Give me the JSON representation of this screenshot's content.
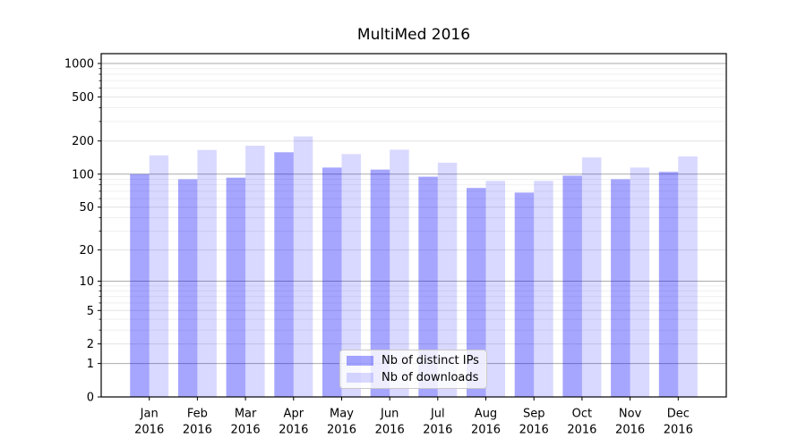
{
  "chart_data": {
    "type": "bar",
    "title": "MultiMed 2016",
    "categories": [
      "Jan 2016",
      "Feb 2016",
      "Mar 2016",
      "Apr 2016",
      "May 2016",
      "Jun 2016",
      "Jul 2016",
      "Aug 2016",
      "Sep 2016",
      "Oct 2016",
      "Nov 2016",
      "Dec 2016"
    ],
    "series": [
      {
        "name": "Nb of distinct IPs",
        "color": "#0000ff59",
        "values": [
          100,
          90,
          93,
          158,
          115,
          110,
          95,
          75,
          68,
          97,
          90,
          105
        ]
      },
      {
        "name": "Nb of downloads",
        "color": "#0000ff26",
        "values": [
          148,
          166,
          181,
          220,
          152,
          167,
          127,
          87,
          87,
          142,
          115,
          145
        ]
      }
    ],
    "xlabel": "",
    "ylabel": "",
    "y_scale": "log1p",
    "y_ticks": [
      0,
      1,
      2,
      5,
      10,
      20,
      50,
      100,
      200,
      500,
      1000
    ],
    "ylim": [
      0,
      1290
    ],
    "grid": true,
    "legend_position": "lower center"
  },
  "colors": {
    "axis_frame": "#000000",
    "grid_major": "#ababab",
    "grid_minor_labeled": "#e2e2e2",
    "grid_minor": "#efefef",
    "tick_color": "#000000",
    "text": "#000000",
    "legend_border": "#c9c9c9",
    "legend_bg": "#ffffff",
    "background": "#ffffff"
  }
}
